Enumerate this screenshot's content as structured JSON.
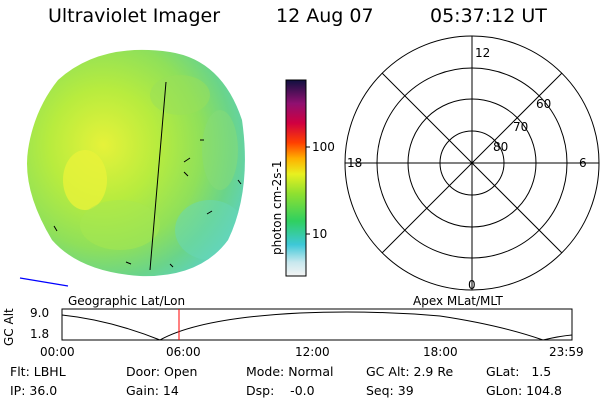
{
  "header": {
    "instrument": "Ultraviolet Imager",
    "date": "12 Aug 07",
    "time": "05:37:12 UT"
  },
  "colorbar": {
    "unit_label": "photon cm-2s-1",
    "ticks": [
      "100",
      "10"
    ]
  },
  "polar_plot": {
    "mlt_labels": [
      "12",
      "18",
      "6",
      "0"
    ],
    "mlat_labels": [
      "60",
      "70",
      "80"
    ]
  },
  "image_labels": {
    "left": "Geographic Lat/Lon",
    "right": "Apex MLat/MLT"
  },
  "altitude_plot": {
    "ylabel": "GC Alt",
    "y_ticks": [
      "9.0",
      "1.8"
    ],
    "x_ticks": [
      "00:00",
      "06:00",
      "12:00",
      "18:00",
      "23:59"
    ]
  },
  "info": {
    "filter": "Flt: LBHL",
    "door": "Door: Open",
    "mode": "Mode: Normal",
    "gc_alt": "GC Alt: 2.9 Re",
    "glat": "GLat:   1.5",
    "ip": "IP: 36.0",
    "gain": "Gain: 14",
    "dsp": "Dsp:    -0.0",
    "seq": "Seq: 39",
    "glon": "GLon: 104.8"
  },
  "colors": {
    "marker": "#ff0000",
    "orbit_line": "#000000",
    "horizon_line": "#0000ff"
  }
}
